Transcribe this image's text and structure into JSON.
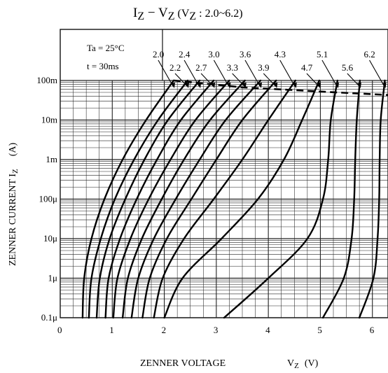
{
  "chart_data": {
    "type": "line",
    "title": "I",
    "title_sub1": "Z",
    "title_mid": " − V",
    "title_sub2": "Z",
    "title_tail": "  (V",
    "title_sub3": "Z",
    "title_range": " : 2.0~6.2)",
    "xlabel": "ZENNER VOLTAGE",
    "xlabel_symbol": "V",
    "xlabel_symbol_sub": "Z",
    "xlabel_unit": "(V)",
    "ylabel": "ZENNER CURRENT   I",
    "ylabel_sub": "Z",
    "ylabel_unit": "(A)",
    "conditions": [
      "Ta = 25°C",
      "t = 30ms"
    ],
    "xlim": [
      0,
      6.3
    ],
    "ylim": [
      1e-07,
      1
    ],
    "y_scale": "log",
    "grid": true,
    "x_ticks": [
      {
        "v": 0,
        "label": "0"
      },
      {
        "v": 1,
        "label": "1"
      },
      {
        "v": 2,
        "label": "2"
      },
      {
        "v": 3,
        "label": "3"
      },
      {
        "v": 4,
        "label": "4"
      },
      {
        "v": 5,
        "label": "5"
      },
      {
        "v": 6,
        "label": "6"
      }
    ],
    "y_ticks": [
      {
        "v": 1e-07,
        "label": "0.1μ"
      },
      {
        "v": 1e-06,
        "label": "1μ"
      },
      {
        "v": 1e-05,
        "label": "10μ"
      },
      {
        "v": 0.0001,
        "label": "100μ"
      },
      {
        "v": 0.001,
        "label": "1m"
      },
      {
        "v": 0.01,
        "label": "10m"
      },
      {
        "v": 0.1,
        "label": "100m"
      }
    ],
    "series": [
      {
        "name": "2.0",
        "label_v": 2.0,
        "points": [
          [
            0.43,
            1e-07
          ],
          [
            0.46,
            1e-06
          ],
          [
            0.6,
            1e-05
          ],
          [
            0.85,
            0.0001
          ],
          [
            1.2,
            0.001
          ],
          [
            1.65,
            0.01
          ],
          [
            2.18,
            0.1
          ]
        ]
      },
      {
        "name": "2.2",
        "label_v": 2.2,
        "points": [
          [
            0.55,
            1e-07
          ],
          [
            0.6,
            1e-06
          ],
          [
            0.78,
            1e-05
          ],
          [
            1.05,
            0.0001
          ],
          [
            1.42,
            0.001
          ],
          [
            1.88,
            0.01
          ],
          [
            2.45,
            0.1
          ]
        ]
      },
      {
        "name": "2.4",
        "label_v": 2.4,
        "points": [
          [
            0.7,
            1e-07
          ],
          [
            0.76,
            1e-06
          ],
          [
            0.95,
            1e-05
          ],
          [
            1.25,
            0.0001
          ],
          [
            1.62,
            0.001
          ],
          [
            2.07,
            0.01
          ],
          [
            2.68,
            0.1
          ]
        ]
      },
      {
        "name": "2.7",
        "label_v": 2.7,
        "points": [
          [
            0.87,
            1e-07
          ],
          [
            0.93,
            1e-06
          ],
          [
            1.15,
            1e-05
          ],
          [
            1.47,
            0.0001
          ],
          [
            1.86,
            0.001
          ],
          [
            2.32,
            0.01
          ],
          [
            2.95,
            0.1
          ]
        ]
      },
      {
        "name": "3.0",
        "label_v": 3.0,
        "points": [
          [
            1.02,
            1e-07
          ],
          [
            1.1,
            1e-06
          ],
          [
            1.35,
            1e-05
          ],
          [
            1.7,
            0.0001
          ],
          [
            2.12,
            0.001
          ],
          [
            2.6,
            0.01
          ],
          [
            3.25,
            0.1
          ]
        ]
      },
      {
        "name": "3.3",
        "label_v": 3.3,
        "points": [
          [
            1.2,
            1e-07
          ],
          [
            1.3,
            1e-06
          ],
          [
            1.57,
            1e-05
          ],
          [
            1.95,
            0.0001
          ],
          [
            2.38,
            0.001
          ],
          [
            2.88,
            0.01
          ],
          [
            3.55,
            0.1
          ]
        ]
      },
      {
        "name": "3.6",
        "label_v": 3.6,
        "points": [
          [
            1.37,
            1e-07
          ],
          [
            1.5,
            1e-06
          ],
          [
            1.8,
            1e-05
          ],
          [
            2.22,
            0.0001
          ],
          [
            2.68,
            0.001
          ],
          [
            3.18,
            0.01
          ],
          [
            3.85,
            0.1
          ]
        ]
      },
      {
        "name": "3.9",
        "label_v": 3.9,
        "points": [
          [
            1.58,
            1e-07
          ],
          [
            1.72,
            1e-06
          ],
          [
            2.05,
            1e-05
          ],
          [
            2.52,
            0.0001
          ],
          [
            3.0,
            0.001
          ],
          [
            3.5,
            0.01
          ],
          [
            4.15,
            0.1
          ]
        ]
      },
      {
        "name": "4.3",
        "label_v": 4.3,
        "points": [
          [
            1.8,
            1e-07
          ],
          [
            1.97,
            1e-06
          ],
          [
            2.38,
            1e-05
          ],
          [
            2.95,
            0.0001
          ],
          [
            3.5,
            0.001
          ],
          [
            4.0,
            0.01
          ],
          [
            4.52,
            0.1
          ]
        ]
      },
      {
        "name": "4.7",
        "label_v": 4.7,
        "points": [
          [
            2.0,
            1e-07
          ],
          [
            2.35,
            1e-06
          ],
          [
            3.1,
            1e-05
          ],
          [
            3.8,
            0.0001
          ],
          [
            4.3,
            0.001
          ],
          [
            4.65,
            0.01
          ],
          [
            4.98,
            0.1
          ]
        ]
      },
      {
        "name": "5.1",
        "label_v": 5.1,
        "points": [
          [
            3.15,
            1e-07
          ],
          [
            4.0,
            1e-06
          ],
          [
            4.75,
            1e-05
          ],
          [
            5.05,
            0.0001
          ],
          [
            5.15,
            0.001
          ],
          [
            5.2,
            0.01
          ],
          [
            5.33,
            0.1
          ]
        ]
      },
      {
        "name": "5.6",
        "label_v": 5.6,
        "points": [
          [
            5.05,
            1e-07
          ],
          [
            5.45,
            1e-06
          ],
          [
            5.6,
            1e-05
          ],
          [
            5.65,
            0.0001
          ],
          [
            5.67,
            0.001
          ],
          [
            5.7,
            0.01
          ],
          [
            5.76,
            0.1
          ]
        ]
      },
      {
        "name": "6.2",
        "label_v": 6.2,
        "points": [
          [
            5.75,
            1e-07
          ],
          [
            6.02,
            1e-06
          ],
          [
            6.1,
            1e-05
          ],
          [
            6.13,
            0.0001
          ],
          [
            6.14,
            0.001
          ],
          [
            6.16,
            0.01
          ],
          [
            6.24,
            0.1
          ]
        ]
      }
    ],
    "limit_line": {
      "points": [
        [
          2.18,
          0.1
        ],
        [
          3.5,
          0.067
        ],
        [
          4.5,
          0.057
        ],
        [
          5.3,
          0.05
        ],
        [
          6.3,
          0.043
        ]
      ]
    }
  }
}
